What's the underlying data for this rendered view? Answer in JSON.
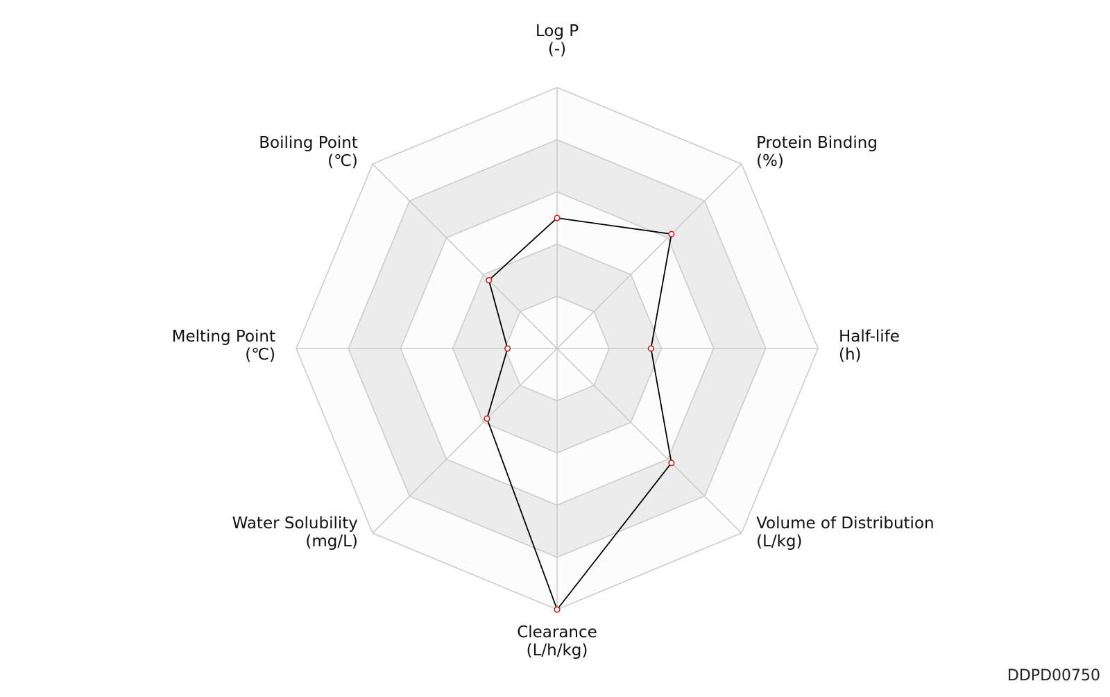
{
  "chart_data": {
    "type": "radar",
    "axes": [
      {
        "name": "Log P",
        "unit": "(-)"
      },
      {
        "name": "Protein Binding",
        "unit": "(%)"
      },
      {
        "name": "Half-life",
        "unit": "(h)"
      },
      {
        "name": "Volume of Distribution",
        "unit": "(L/kg)"
      },
      {
        "name": "Clearance",
        "unit": "(L/h/kg)"
      },
      {
        "name": "Water Solubility",
        "unit": "(mg/L)"
      },
      {
        "name": "Melting Point",
        "unit": "(℃)"
      },
      {
        "name": "Boiling Point",
        "unit": "(℃)"
      }
    ],
    "rlim": [
      0,
      5
    ],
    "rings": 5,
    "values": [
      2.5,
      3.1,
      1.8,
      3.1,
      5.0,
      1.9,
      0.95,
      1.85
    ],
    "colors": {
      "line": "#000000",
      "marker_edge": "#cc2222",
      "marker_fill": "#ffffff",
      "band_fill": "#ececec",
      "band_alt_fill": "#fcfcfc",
      "grid": "#cccccc"
    }
  },
  "watermark": "DDPD00750"
}
